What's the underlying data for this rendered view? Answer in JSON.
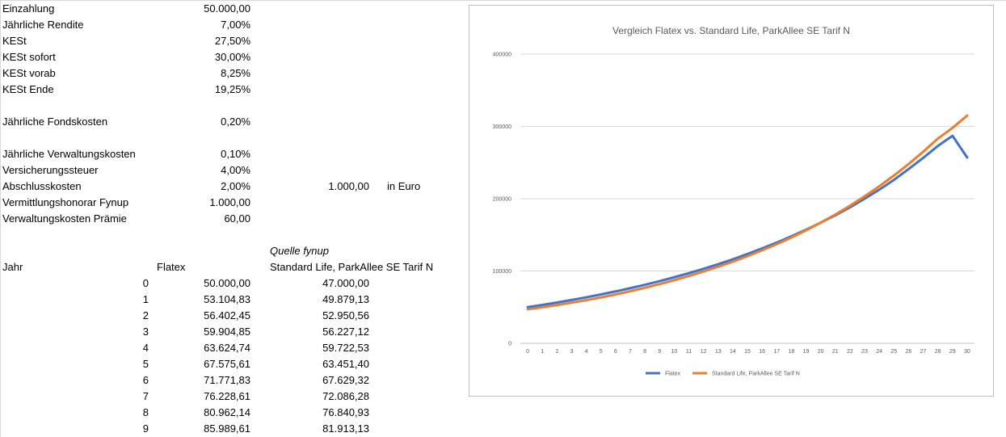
{
  "params": [
    {
      "label": "Einzahlung",
      "value": "50.000,00"
    },
    {
      "label": "Jährliche Rendite",
      "value": "7,00%"
    },
    {
      "label": "KESt",
      "value": "27,50%"
    },
    {
      "label": "KESt sofort",
      "value": "30,00%"
    },
    {
      "label": "KESt vorab",
      "value": "8,25%"
    },
    {
      "label": "KESt Ende",
      "value": "19,25%"
    },
    {
      "label": "Jährliche Fondskosten",
      "value": "0,20%"
    },
    {
      "label": "Jährliche Verwaltungskosten",
      "value": "0,10%"
    },
    {
      "label": "Versicherungssteuer",
      "value": "4,00%"
    },
    {
      "label": "Abschlusskosten",
      "value": "2,00%",
      "extra": "1.000,00",
      "unit": "in Euro"
    },
    {
      "label": "Vermittlungshonorar Fynup",
      "value": "1.000,00"
    },
    {
      "label": "Verwaltungskosten Prämie",
      "value": "60,00"
    }
  ],
  "table": {
    "source_note": "Quelle fynup",
    "headers": [
      "Jahr",
      "Flatex",
      "Standard Life, ParkAllee SE Tarif N"
    ],
    "rows": [
      [
        "0",
        "50.000,00",
        "47.000,00"
      ],
      [
        "1",
        "53.104,83",
        "49.879,13"
      ],
      [
        "2",
        "56.402,45",
        "52.950,56"
      ],
      [
        "3",
        "59.904,85",
        "56.227,12"
      ],
      [
        "4",
        "63.624,74",
        "59.722,53"
      ],
      [
        "5",
        "67.575,61",
        "63.451,40"
      ],
      [
        "6",
        "71.771,83",
        "67.629,32"
      ],
      [
        "7",
        "76.228,61",
        "72.086,28"
      ],
      [
        "8",
        "80.962,14",
        "76.840,93"
      ],
      [
        "9",
        "85.989,61",
        "81.913,13"
      ]
    ]
  },
  "chart_data": {
    "type": "line",
    "title": "Vergleich Flatex vs. Standard Life, ParkAllee SE Tarif N",
    "xlabel": "",
    "ylabel": "",
    "ylim": [
      0,
      400000
    ],
    "yticks": [
      "0",
      "100000",
      "200000",
      "300000",
      "400000"
    ],
    "x": [
      0,
      1,
      2,
      3,
      4,
      5,
      6,
      7,
      8,
      9,
      10,
      11,
      12,
      13,
      14,
      15,
      16,
      17,
      18,
      19,
      20,
      21,
      22,
      23,
      24,
      25,
      26,
      27,
      28,
      29,
      30
    ],
    "grid": true,
    "legend_position": "bottom",
    "series": [
      {
        "name": "Flatex",
        "color": "#4472c4",
        "values": [
          50000,
          53105,
          56402,
          59905,
          63625,
          67576,
          71772,
          76229,
          80962,
          85990,
          91330,
          97000,
          103020,
          109400,
          116200,
          123500,
          131200,
          139300,
          148000,
          157200,
          166900,
          177000,
          188000,
          200000,
          212500,
          226000,
          241000,
          256500,
          273000,
          287000,
          257000
        ]
      },
      {
        "name": "Standard Life, ParkAllee SE Tarif N",
        "color": "#ed7d31",
        "values": [
          47000,
          49879,
          52951,
          56227,
          59723,
          63451,
          67629,
          72086,
          76841,
          81913,
          87300,
          93100,
          99300,
          105900,
          112900,
          120500,
          128600,
          137200,
          146400,
          156300,
          166900,
          178200,
          190300,
          203300,
          217200,
          232100,
          248000,
          265000,
          283200,
          298000,
          315000
        ]
      }
    ]
  }
}
